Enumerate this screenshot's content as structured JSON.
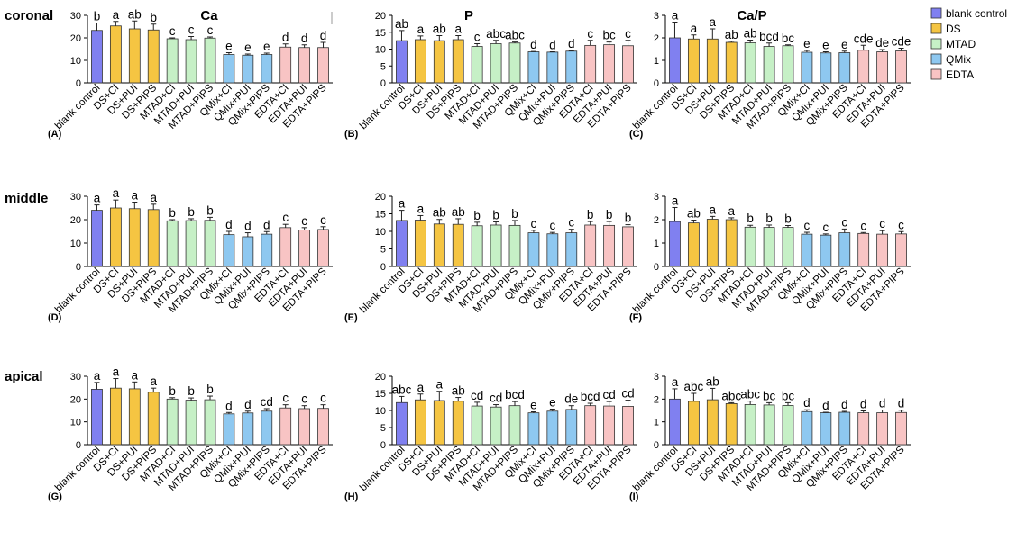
{
  "row_labels": [
    "coronal",
    "middle",
    "apical"
  ],
  "column_titles": [
    "Ca",
    "P",
    "Ca/P"
  ],
  "legend": [
    {
      "name": "blank control",
      "color": "#8080f0"
    },
    {
      "name": "DS",
      "color": "#f5c542"
    },
    {
      "name": "MTAD",
      "color": "#c6f0c6"
    },
    {
      "name": "QMix",
      "color": "#8ec8f0"
    },
    {
      "name": "EDTA",
      "color": "#f8c4c4"
    }
  ],
  "bar_group_index": [
    0,
    1,
    1,
    1,
    2,
    2,
    2,
    3,
    3,
    3,
    4,
    4,
    4
  ],
  "chart_data": [
    {
      "panel": "(A)",
      "type": "bar",
      "row": 0,
      "col": 0,
      "ylim": [
        0,
        30
      ],
      "yticks": [
        0,
        10,
        20,
        30
      ],
      "categories": [
        "blank control",
        "DS+CI",
        "DS+PUI",
        "DS+PIPS",
        "MTAD+CI",
        "MTAD+PUI",
        "MTAD+PIPS",
        "QMix+CI",
        "QMix+PUI",
        "QMix+PIPS",
        "EDTA+CI",
        "EDTA+PUI",
        "EDTA+PIPS"
      ],
      "values": [
        23.3,
        25.3,
        24,
        23.5,
        19.6,
        19.2,
        19.9,
        12.6,
        12.3,
        12.6,
        15.9,
        15.7,
        15.7
      ],
      "errors": [
        3.3,
        2,
        3.5,
        2.6,
        0.4,
        1.4,
        0.5,
        0.8,
        0.5,
        0.6,
        1.4,
        1.2,
        2.3
      ],
      "letters": [
        "b",
        "a",
        "ab",
        "b",
        "c",
        "c",
        "c",
        "e",
        "e",
        "e",
        "d",
        "d",
        "d"
      ]
    },
    {
      "panel": "(B)",
      "type": "bar",
      "row": 0,
      "col": 1,
      "ylim": [
        0,
        20
      ],
      "yticks": [
        0,
        5,
        10,
        15,
        20
      ],
      "categories": [
        "blank control",
        "DS+CI",
        "DS+PUI",
        "DS+PIPS",
        "MTAD+CI",
        "MTAD+PUI",
        "MTAD+PIPS",
        "QMix+CI",
        "QMix+PUI",
        "QMix+PIPS",
        "EDTA+CI",
        "EDTA+PUI",
        "EDTA+PIPS"
      ],
      "values": [
        12.5,
        12.8,
        12.5,
        12.8,
        10.8,
        11.6,
        11.8,
        9.2,
        9.1,
        9.4,
        11.1,
        11.3,
        11
      ],
      "errors": [
        3,
        1.1,
        1.5,
        1.2,
        0.8,
        1,
        0.3,
        0.1,
        0.1,
        0.2,
        1.5,
        0.8,
        1.6
      ],
      "letters": [
        "ab",
        "a",
        "ab",
        "a",
        "c",
        "abc",
        "abc",
        "d",
        "d",
        "d",
        "c",
        "bc",
        "c"
      ]
    },
    {
      "panel": "(C)",
      "type": "bar",
      "row": 0,
      "col": 2,
      "ylim": [
        0,
        3
      ],
      "yticks": [
        0,
        1,
        2,
        3
      ],
      "categories": [
        "blank control",
        "DS+CI",
        "DS+PUI",
        "DS+PIPS",
        "MTAD+CI",
        "MTAD+PUI",
        "MTAD+PIPS",
        "QMix+CI",
        "QMix+PUI",
        "QMix+PIPS",
        "EDTA+CI",
        "EDTA+PUI",
        "EDTA+PIPS"
      ],
      "values": [
        2,
        1.95,
        1.95,
        1.8,
        1.78,
        1.62,
        1.65,
        1.36,
        1.33,
        1.34,
        1.45,
        1.38,
        1.42
      ],
      "errors": [
        0.7,
        0.18,
        0.45,
        0.05,
        0.12,
        0.15,
        0.04,
        0.08,
        0.05,
        0.07,
        0.22,
        0.1,
        0.12
      ],
      "letters": [
        "a",
        "a",
        "a",
        "ab",
        "ab",
        "bcd",
        "bc",
        "e",
        "e",
        "e",
        "cde",
        "de",
        "cde"
      ]
    },
    {
      "panel": "(D)",
      "type": "bar",
      "row": 1,
      "col": 0,
      "ylim": [
        0,
        30
      ],
      "yticks": [
        0,
        10,
        20,
        30
      ],
      "categories": [
        "blank control",
        "DS+CI",
        "DS+PUI",
        "DS+PIPS",
        "MTAD+CI",
        "MTAD+PUI",
        "MTAD+PIPS",
        "QMix+CI",
        "QMix+PUI",
        "QMix+PIPS",
        "EDTA+CI",
        "EDTA+PUI",
        "EDTA+PIPS"
      ],
      "values": [
        24,
        25,
        24.7,
        24.3,
        19.5,
        19.6,
        19.7,
        13.6,
        12.7,
        13.8,
        16.6,
        15.6,
        15.8
      ],
      "errors": [
        2.3,
        3.4,
        2.8,
        2.3,
        0.5,
        0.8,
        1.3,
        1.4,
        1.7,
        1.1,
        1.4,
        1,
        1.2
      ],
      "letters": [
        "a",
        "a",
        "a",
        "a",
        "b",
        "b",
        "b",
        "d",
        "d",
        "d",
        "c",
        "c",
        "c"
      ]
    },
    {
      "panel": "(E)",
      "type": "bar",
      "row": 1,
      "col": 1,
      "ylim": [
        0,
        20
      ],
      "yticks": [
        0,
        5,
        10,
        15,
        20
      ],
      "categories": [
        "blank control",
        "DS+CI",
        "DS+PUI",
        "DS+PIPS",
        "MTAD+CI",
        "MTAD+PUI",
        "MTAD+PIPS",
        "QMix+CI",
        "QMix+PUI",
        "QMix+PIPS",
        "EDTA+CI",
        "EDTA+PUI",
        "EDTA+PIPS"
      ],
      "values": [
        13.1,
        13.2,
        12.1,
        12,
        11.6,
        11.8,
        11.7,
        9.6,
        9.3,
        9.6,
        11.8,
        11.7,
        11.3
      ],
      "errors": [
        2.9,
        1.3,
        1.3,
        1.6,
        1,
        0.9,
        1.4,
        0.7,
        0.4,
        1,
        1,
        1.1,
        0.6
      ],
      "letters": [
        "a",
        "a",
        "ab",
        "ab",
        "b",
        "b",
        "b",
        "c",
        "c",
        "c",
        "b",
        "b",
        "b"
      ]
    },
    {
      "panel": "(F)",
      "type": "bar",
      "row": 1,
      "col": 2,
      "ylim": [
        0,
        3
      ],
      "yticks": [
        0,
        1,
        2,
        3
      ],
      "categories": [
        "blank control",
        "DS+CI",
        "DS+PUI",
        "DS+PIPS",
        "MTAD+CI",
        "MTAD+PUI",
        "MTAD+PIPS",
        "QMix+CI",
        "QMix+PUI",
        "QMix+PIPS",
        "EDTA+CI",
        "EDTA+PUI",
        "EDTA+PIPS"
      ],
      "values": [
        1.92,
        1.86,
        2.02,
        2,
        1.68,
        1.67,
        1.67,
        1.38,
        1.34,
        1.44,
        1.41,
        1.38,
        1.39
      ],
      "errors": [
        0.6,
        0.12,
        0.12,
        0.08,
        0.08,
        0.1,
        0.08,
        0.08,
        0.05,
        0.16,
        0.04,
        0.15,
        0.1
      ],
      "letters": [
        "a",
        "ab",
        "a",
        "a",
        "b",
        "b",
        "b",
        "c",
        "c",
        "c",
        "c",
        "c",
        "c"
      ]
    },
    {
      "panel": "(G)",
      "type": "bar",
      "row": 2,
      "col": 0,
      "ylim": [
        0,
        30
      ],
      "yticks": [
        0,
        10,
        20,
        30
      ],
      "categories": [
        "blank control",
        "DS+CI",
        "DS+PUI",
        "DS+PIPS",
        "MTAD+CI",
        "MTAD+PUI",
        "MTAD+PIPS",
        "QMix+CI",
        "QMix+PUI",
        "QMix+PIPS",
        "EDTA+CI",
        "EDTA+PUI",
        "EDTA+PIPS"
      ],
      "values": [
        24.3,
        24.8,
        24.5,
        23,
        20,
        19.5,
        19.7,
        13.5,
        13.9,
        14.7,
        16.1,
        15.8,
        15.9
      ],
      "errors": [
        3,
        4.2,
        3,
        1.8,
        0.6,
        1,
        1.6,
        0.6,
        0.8,
        1.1,
        1.4,
        1.3,
        1.6
      ],
      "letters": [
        "a",
        "a",
        "a",
        "a",
        "b",
        "b",
        "b",
        "d",
        "d",
        "cd",
        "c",
        "c",
        "c"
      ]
    },
    {
      "panel": "(H)",
      "type": "bar",
      "row": 2,
      "col": 1,
      "ylim": [
        0,
        20
      ],
      "yticks": [
        0,
        5,
        10,
        15,
        20
      ],
      "categories": [
        "blank control",
        "DS+CI",
        "DS+PUI",
        "DS+PIPS",
        "MTAD+CI",
        "MTAD+PUI",
        "MTAD+PIPS",
        "QMix+CI",
        "QMix+PUI",
        "QMix+PIPS",
        "EDTA+CI",
        "EDTA+PUI",
        "EDTA+PIPS"
      ],
      "values": [
        12.3,
        13.1,
        12.9,
        12.7,
        11.3,
        11,
        11.4,
        9.3,
        9.8,
        10.3,
        11.4,
        11.3,
        11.2
      ],
      "errors": [
        1.8,
        1.7,
        2.7,
        1.1,
        1.1,
        0.7,
        1.2,
        0.3,
        0.6,
        1.1,
        0.7,
        1.3,
        1.8
      ],
      "letters": [
        "abc",
        "a",
        "a",
        "ab",
        "cd",
        "cd",
        "bcd",
        "e",
        "e",
        "de",
        "bcd",
        "cd",
        "cd"
      ]
    },
    {
      "panel": "(I)",
      "type": "bar",
      "row": 2,
      "col": 2,
      "ylim": [
        0,
        3
      ],
      "yticks": [
        0,
        1,
        2,
        3
      ],
      "categories": [
        "blank control",
        "DS+CI",
        "DS+PUI",
        "DS+PIPS",
        "MTAD+CI",
        "MTAD+PUI",
        "MTAD+PIPS",
        "QMix+CI",
        "QMix+PUI",
        "QMix+PIPS",
        "EDTA+CI",
        "EDTA+PUI",
        "EDTA+PIPS"
      ],
      "values": [
        2,
        1.9,
        1.97,
        1.8,
        1.76,
        1.74,
        1.72,
        1.45,
        1.4,
        1.42,
        1.4,
        1.4,
        1.41
      ],
      "errors": [
        0.45,
        0.35,
        0.5,
        0.04,
        0.15,
        0.1,
        0.12,
        0.08,
        0.02,
        0.04,
        0.08,
        0.12,
        0.1
      ],
      "letters": [
        "a",
        "abc",
        "ab",
        "abc",
        "abc",
        "bc",
        "bc",
        "d",
        "d",
        "d",
        "d",
        "d",
        "d"
      ]
    }
  ]
}
